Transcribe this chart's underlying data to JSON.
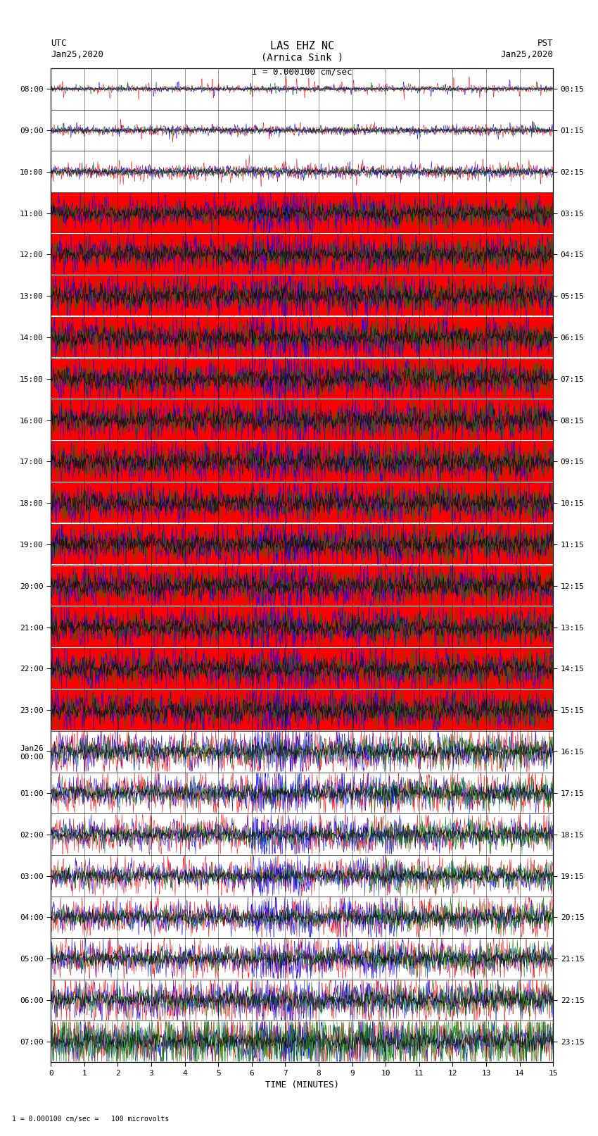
{
  "title_line1": "LAS EHZ NC",
  "title_line2": "(Arnica Sink )",
  "scale_text": "I = 0.000100 cm/sec",
  "left_label_top": "UTC",
  "left_label_date": "Jan25,2020",
  "right_label_top": "PST",
  "right_label_date": "Jan25,2020",
  "bottom_label": "TIME (MINUTES)",
  "footer_text": "1 = 0.000100 cm/sec =   100 microvolts",
  "utc_times": [
    "08:00",
    "09:00",
    "10:00",
    "11:00",
    "12:00",
    "13:00",
    "14:00",
    "15:00",
    "16:00",
    "17:00",
    "18:00",
    "19:00",
    "20:00",
    "21:00",
    "22:00",
    "23:00",
    "Jan26\n00:00",
    "01:00",
    "02:00",
    "03:00",
    "04:00",
    "05:00",
    "06:00",
    "07:00"
  ],
  "pst_times": [
    "00:15",
    "01:15",
    "02:15",
    "03:15",
    "04:15",
    "05:15",
    "06:15",
    "07:15",
    "08:15",
    "09:15",
    "10:15",
    "11:15",
    "12:15",
    "13:15",
    "14:15",
    "15:15",
    "16:15",
    "17:15",
    "18:15",
    "19:15",
    "20:15",
    "21:15",
    "22:15",
    "23:15"
  ],
  "n_rows": 24,
  "n_minutes": 15,
  "bg_color": "white",
  "colors": [
    "red",
    "blue",
    "green",
    "black"
  ],
  "grid_color": "black",
  "title_fontsize": 11,
  "label_fontsize": 9,
  "tick_fontsize": 8,
  "row_amplitudes": [
    0.05,
    0.08,
    0.12,
    0.35,
    0.42,
    0.45,
    0.45,
    0.45,
    0.45,
    0.45,
    0.45,
    0.45,
    0.45,
    0.45,
    0.45,
    0.45,
    0.38,
    0.32,
    0.3,
    0.28,
    0.3,
    0.32,
    0.38,
    0.42
  ],
  "red_fill_rows": [
    3,
    4,
    5,
    6,
    7,
    8,
    9,
    10,
    11,
    12,
    13,
    14,
    15
  ],
  "blue_dominant_cols": [
    6,
    7
  ],
  "green_dominant_right": true,
  "last_row_green": true
}
